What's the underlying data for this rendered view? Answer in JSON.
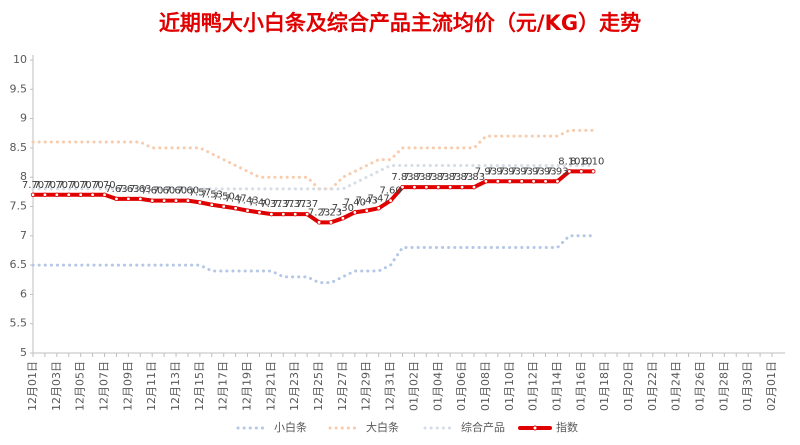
{
  "chart_data": {
    "type": "line",
    "title": "近期鸭大小白条及综合产品主流均价（元/KG）走势",
    "categories": [
      "12月01日",
      null,
      "12月03日",
      null,
      "12月05日",
      null,
      "12月07日",
      null,
      "12月09日",
      null,
      "12月11日",
      null,
      "12月13日",
      null,
      "12月15日",
      null,
      "12月17日",
      null,
      "12月19日",
      null,
      "12月21日",
      null,
      "12月23日",
      null,
      "12月25日",
      null,
      "12月27日",
      null,
      "12月29日",
      null,
      "12月31日",
      null,
      "01月02日",
      null,
      "01月04日",
      null,
      "01月06日",
      null,
      "01月08日",
      null,
      "01月10日",
      null,
      "01月12日",
      null,
      "01月14日",
      null,
      "01月16日",
      null,
      "01月18日",
      null,
      "01月20日",
      null,
      "01月22日",
      null,
      "01月24日",
      null,
      "01月26日",
      null,
      "01月28日",
      null,
      "01月30日",
      null,
      "02月01日"
    ],
    "ylim": [
      5,
      10
    ],
    "yticks": [
      5,
      5.5,
      6,
      6.5,
      7,
      7.5,
      8,
      8.5,
      9,
      9.5,
      10
    ],
    "legend": "bottom",
    "series": [
      {
        "name": "小白条",
        "color": "#b4c7e7",
        "style": "dotted",
        "values": [
          6.5,
          6.5,
          6.5,
          6.5,
          6.5,
          6.5,
          6.5,
          6.5,
          6.5,
          6.5,
          6.5,
          6.5,
          6.5,
          6.5,
          6.5,
          6.4,
          6.4,
          6.4,
          6.4,
          6.4,
          6.4,
          6.3,
          6.3,
          6.3,
          6.2,
          6.2,
          6.3,
          6.4,
          6.4,
          6.4,
          6.5,
          6.8,
          6.8,
          6.8,
          6.8,
          6.8,
          6.8,
          6.8,
          6.8,
          6.8,
          6.8,
          6.8,
          6.8,
          6.8,
          6.8,
          7.0,
          7.0,
          7.0,
          null,
          null,
          null,
          null,
          null,
          null,
          null,
          null,
          null,
          null,
          null,
          null,
          null,
          null,
          null
        ]
      },
      {
        "name": "大白条",
        "color": "#f8cbad",
        "style": "dotted",
        "values": [
          8.6,
          8.6,
          8.6,
          8.6,
          8.6,
          8.6,
          8.6,
          8.6,
          8.6,
          8.6,
          8.5,
          8.5,
          8.5,
          8.5,
          8.5,
          8.4,
          8.3,
          8.2,
          8.1,
          8.0,
          8.0,
          8.0,
          8.0,
          8.0,
          7.8,
          7.8,
          8.0,
          8.1,
          8.2,
          8.3,
          8.3,
          8.5,
          8.5,
          8.5,
          8.5,
          8.5,
          8.5,
          8.5,
          8.7,
          8.7,
          8.7,
          8.7,
          8.7,
          8.7,
          8.7,
          8.8,
          8.8,
          8.8,
          null,
          null,
          null,
          null,
          null,
          null,
          null,
          null,
          null,
          null,
          null,
          null,
          null,
          null,
          null
        ]
      },
      {
        "name": "综合产品",
        "color": "#d6dce5",
        "style": "dotted",
        "values": [
          7.8,
          7.8,
          7.8,
          7.8,
          7.8,
          7.8,
          7.8,
          7.8,
          7.8,
          7.8,
          7.8,
          7.8,
          7.8,
          7.8,
          7.8,
          7.8,
          7.8,
          7.8,
          7.8,
          7.8,
          7.8,
          7.8,
          7.8,
          7.8,
          7.8,
          7.8,
          7.8,
          7.9,
          8.0,
          8.1,
          8.2,
          8.2,
          8.2,
          8.2,
          8.2,
          8.2,
          8.2,
          8.2,
          8.2,
          8.2,
          8.2,
          8.2,
          8.2,
          8.2,
          8.2,
          8.2,
          8.2,
          8.2,
          null,
          null,
          null,
          null,
          null,
          null,
          null,
          null,
          null,
          null,
          null,
          null,
          null,
          null,
          null
        ]
      },
      {
        "name": "指数",
        "color": "#e00000",
        "style": "solid",
        "values": [
          7.7,
          7.7,
          7.7,
          7.7,
          7.7,
          7.7,
          7.7,
          7.63,
          7.63,
          7.63,
          7.6,
          7.6,
          7.6,
          7.6,
          7.57,
          7.53,
          7.5,
          7.47,
          7.43,
          7.4,
          7.37,
          7.37,
          7.37,
          7.37,
          7.23,
          7.23,
          7.3,
          7.4,
          7.43,
          7.47,
          7.6,
          7.83,
          7.83,
          7.83,
          7.83,
          7.83,
          7.83,
          7.83,
          7.93,
          7.93,
          7.93,
          7.93,
          7.93,
          7.93,
          7.93,
          8.1,
          8.1,
          8.1,
          null,
          null,
          null,
          null,
          null,
          null,
          null,
          null,
          null,
          null,
          null,
          null,
          null,
          null,
          null
        ],
        "value_labels": [
          "7.70",
          "7.70",
          "7.70",
          "7.70",
          "7.70",
          "7.70",
          "7.70",
          "7.63",
          "7.63",
          "7.63",
          "7.60",
          "7.60",
          "7.60",
          "7.60",
          "7.57",
          "7.53",
          "7.50",
          "7.47",
          "7.43",
          "7.40",
          "7.37",
          "7.37",
          "7.37",
          "7.37",
          "7.23",
          "7.23",
          "7.30",
          "7.40",
          "7.43",
          "7.47",
          "7.60",
          "7.83",
          "7.83",
          "7.83",
          "7.83",
          "7.83",
          "7.83",
          "7.83",
          "7.93",
          "7.93",
          "7.93",
          "7.93",
          "7.93",
          "7.93",
          "7.93",
          "8.10",
          "8.10",
          "8.10",
          null,
          null,
          null,
          null,
          null,
          null,
          null,
          null,
          null,
          null,
          null,
          null,
          null,
          null,
          null
        ]
      }
    ]
  }
}
